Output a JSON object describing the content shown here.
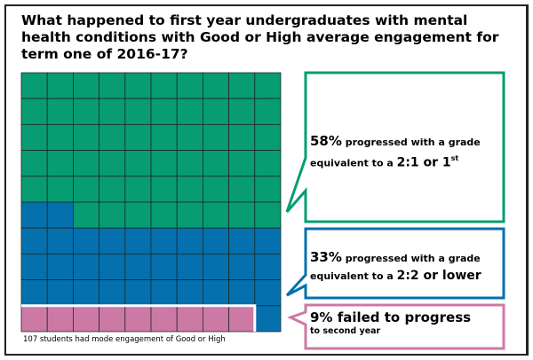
{
  "title": "What happened to first year undergraduates with mental health conditions with Good or High average engagement for term one of 2016-17?",
  "footnote": "107 students had mode engagement of Good or High",
  "colors": {
    "green": "#079c72",
    "blue": "#0570ae",
    "pink": "#cd79a6"
  },
  "chart_data": {
    "type": "waffle",
    "title": "What happened to first year undergraduates with mental health conditions with Good or High average engagement for term one of 2016-17?",
    "total_students": 107,
    "grid": [
      10,
      10
    ],
    "series": [
      {
        "name": "Progressed with 2:1 or 1st",
        "value": 58,
        "color": "#079c72"
      },
      {
        "name": "Progressed with 2:2 or lower",
        "value": 33,
        "color": "#0570ae"
      },
      {
        "name": "Failed to progress",
        "value": 9,
        "color": "#cd79a6"
      }
    ]
  },
  "callouts": {
    "green": {
      "pct": "58%",
      "text1": " progressed with a grade",
      "text2": "equivalent to a ",
      "grade": "2:1 or 1",
      "sup": "st"
    },
    "blue": {
      "pct": "33%",
      "text1": " progressed with a grade",
      "text2": "equivalent to a ",
      "grade": "2:2 or lower"
    },
    "pink": {
      "line1": "9% failed to progress",
      "line2": "to second year"
    }
  }
}
